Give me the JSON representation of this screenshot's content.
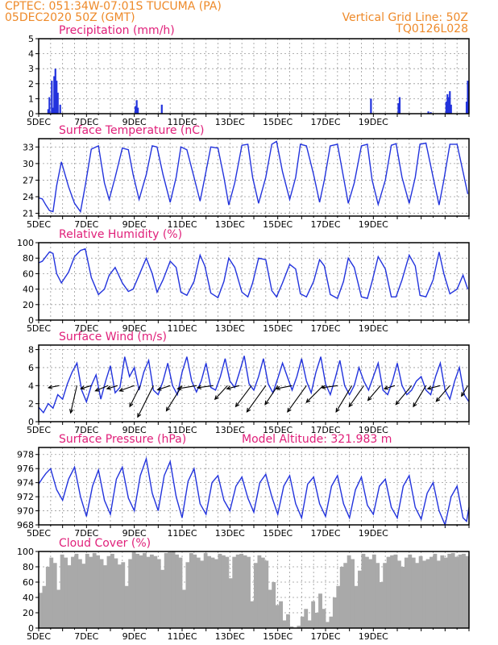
{
  "header": {
    "line1": "CPTEC:   051:34W-07:01S   TUCUMA (PA)",
    "line2": "05DEC2020 50Z (GMT)",
    "right1": "Vertical Grid Line: 50Z",
    "right2": "TQ0126L028"
  },
  "colors": {
    "line": "#2233dd",
    "cloud": "#a9a9a9",
    "title": "#e0207a",
    "header": "#ee8a2a"
  },
  "chart_data": [
    {
      "id": "precip",
      "type": "bar",
      "title": "Precipitation (mm/h)",
      "ylim": [
        0,
        5
      ],
      "yticks": [
        0,
        1,
        2,
        3,
        4,
        5
      ],
      "xlabels": [
        "5DEC",
        "7DEC",
        "9DEC",
        "11DEC",
        "13DEC",
        "15DEC",
        "17DEC",
        "19DEC"
      ],
      "x": [
        0.4,
        0.45,
        0.55,
        0.6,
        0.65,
        0.7,
        0.75,
        0.8,
        0.9,
        4.05,
        4.1,
        4.15,
        5.15,
        13.9,
        15.05,
        15.1,
        16.3,
        16.4,
        17.05,
        17.1,
        17.15,
        17.2,
        17.25,
        17.9,
        17.95
      ],
      "values": [
        0.3,
        1.1,
        2.2,
        0.4,
        2.5,
        3.0,
        2.2,
        1.4,
        0.6,
        0.5,
        0.9,
        0.4,
        0.6,
        1.0,
        0.7,
        1.1,
        0.15,
        0.1,
        0.8,
        1.3,
        1.1,
        1.5,
        0.6,
        0.8,
        2.2
      ]
    },
    {
      "id": "temp",
      "type": "line",
      "title": "Surface Temperature (nC)",
      "ylim": [
        20.5,
        34.5
      ],
      "yticks": [
        21,
        24,
        27,
        30,
        33
      ],
      "xlabels": [
        "5DEC",
        "7DEC",
        "9DEC",
        "11DEC",
        "13DEC",
        "15DEC",
        "17DEC",
        "19DEC"
      ],
      "x": [
        0,
        0.15,
        0.3,
        0.45,
        0.6,
        0.75,
        0.95,
        1.25,
        1.5,
        1.75,
        1.95,
        2.2,
        2.5,
        2.75,
        2.95,
        3.2,
        3.5,
        3.75,
        3.95,
        4.2,
        4.5,
        4.75,
        4.95,
        5.2,
        5.5,
        5.75,
        5.95,
        6.2,
        6.5,
        6.75,
        6.95,
        7.2,
        7.5,
        7.75,
        7.95,
        8.2,
        8.5,
        8.75,
        8.95,
        9.2,
        9.5,
        9.75,
        9.95,
        10.2,
        10.5,
        10.75,
        10.95,
        11.2,
        11.5,
        11.75,
        11.95,
        12.2,
        12.5,
        12.75,
        12.95,
        13.2,
        13.5,
        13.75,
        13.95,
        14.2,
        14.5,
        14.75,
        14.95,
        15.2,
        15.5,
        15.75,
        15.95,
        16.2,
        16.5,
        16.75,
        16.95,
        17.2,
        17.5,
        17.75,
        17.95
      ],
      "values": [
        23.8,
        23.6,
        22.5,
        21.5,
        21.3,
        26,
        30.3,
        25.8,
        22.8,
        21.3,
        26,
        32.6,
        33.2,
        26.5,
        23.5,
        27.5,
        32.8,
        32.5,
        28,
        23.5,
        28,
        33.2,
        33,
        28,
        23,
        27.5,
        33,
        32.5,
        27.5,
        23.2,
        27.5,
        33,
        32.8,
        27.5,
        22.5,
        26.5,
        33.3,
        33.5,
        27.5,
        22.8,
        27.5,
        33.5,
        34,
        28.5,
        23.5,
        27.5,
        33.5,
        33.2,
        28,
        23,
        27,
        33.2,
        33.5,
        27.5,
        22.8,
        26.5,
        33.2,
        33.5,
        27,
        22.6,
        27,
        33.3,
        33.6,
        27.5,
        22.8,
        27.5,
        33.5,
        33.7,
        27.5,
        22.5,
        27,
        33.5,
        33.5,
        28.5,
        24.5
      ]
    },
    {
      "id": "rh",
      "type": "line",
      "title": "Relative Humidity (%)",
      "ylim": [
        0,
        100
      ],
      "yticks": [
        0,
        20,
        40,
        60,
        80,
        100
      ],
      "xlabels": [
        "5DEC",
        "7DEC",
        "9DEC",
        "11DEC",
        "13DEC",
        "15DEC",
        "17DEC",
        "19DEC"
      ],
      "x": [
        0,
        0.15,
        0.3,
        0.45,
        0.6,
        0.75,
        0.95,
        1.25,
        1.5,
        1.75,
        1.95,
        2.2,
        2.5,
        2.75,
        2.95,
        3.2,
        3.5,
        3.75,
        3.95,
        4.2,
        4.5,
        4.75,
        4.95,
        5.2,
        5.5,
        5.75,
        5.95,
        6.2,
        6.5,
        6.75,
        6.95,
        7.2,
        7.5,
        7.75,
        7.95,
        8.2,
        8.5,
        8.75,
        8.95,
        9.2,
        9.5,
        9.75,
        9.95,
        10.2,
        10.5,
        10.75,
        10.95,
        11.2,
        11.5,
        11.75,
        11.95,
        12.2,
        12.5,
        12.75,
        12.95,
        13.2,
        13.5,
        13.75,
        13.95,
        14.2,
        14.5,
        14.75,
        14.95,
        15.2,
        15.5,
        15.75,
        15.95,
        16.2,
        16.5,
        16.75,
        16.95,
        17.2,
        17.5,
        17.75,
        17.95
      ],
      "values": [
        74,
        76,
        82,
        88,
        86,
        60,
        48,
        62,
        82,
        90,
        92,
        55,
        33,
        40,
        58,
        68,
        48,
        37,
        40,
        58,
        80,
        60,
        36,
        52,
        76,
        68,
        36,
        32,
        50,
        84,
        70,
        35,
        29,
        50,
        80,
        68,
        36,
        30,
        48,
        80,
        78,
        38,
        30,
        48,
        72,
        66,
        34,
        30,
        50,
        78,
        70,
        33,
        28,
        50,
        80,
        68,
        30,
        28,
        50,
        82,
        66,
        30,
        30,
        52,
        84,
        70,
        32,
        30,
        52,
        88,
        60,
        34,
        40,
        58,
        40
      ]
    },
    {
      "id": "wind",
      "type": "line",
      "title": "Surface Wind (m/s)",
      "ylim": [
        0,
        8.5
      ],
      "yticks": [
        0,
        2,
        4,
        6,
        8
      ],
      "xlabels": [
        "5DEC",
        "7DEC",
        "9DEC",
        "11DEC",
        "13DEC",
        "15DEC",
        "17DEC",
        "19DEC"
      ],
      "x": [
        0,
        0.2,
        0.4,
        0.6,
        0.8,
        1,
        1.2,
        1.4,
        1.6,
        1.8,
        2,
        2.2,
        2.4,
        2.6,
        2.8,
        3,
        3.2,
        3.4,
        3.6,
        3.8,
        4,
        4.2,
        4.4,
        4.6,
        4.8,
        5,
        5.2,
        5.4,
        5.6,
        5.8,
        6,
        6.2,
        6.4,
        6.6,
        6.8,
        7,
        7.2,
        7.4,
        7.6,
        7.8,
        8,
        8.2,
        8.4,
        8.6,
        8.8,
        9,
        9.2,
        9.4,
        9.6,
        9.8,
        10,
        10.2,
        10.4,
        10.6,
        10.8,
        11,
        11.2,
        11.4,
        11.6,
        11.8,
        12,
        12.2,
        12.4,
        12.6,
        12.8,
        13,
        13.2,
        13.4,
        13.6,
        13.8,
        14,
        14.2,
        14.4,
        14.6,
        14.8,
        15,
        15.2,
        15.4,
        15.6,
        15.8,
        16,
        16.2,
        16.4,
        16.6,
        16.8,
        17,
        17.2,
        17.4,
        17.6,
        17.8,
        18
      ],
      "values": [
        1.6,
        1.0,
        2.0,
        1.5,
        3.0,
        2.5,
        4.2,
        5.5,
        6.5,
        3.5,
        2.2,
        4.0,
        5.2,
        2.5,
        4.5,
        6.2,
        3.2,
        3.8,
        7.2,
        5.0,
        6.0,
        3.5,
        5.5,
        6.8,
        3.5,
        3.0,
        4.5,
        6.5,
        4.0,
        3.0,
        5.5,
        7.2,
        4.5,
        3.3,
        4.5,
        6.5,
        3.8,
        3.5,
        5.0,
        7.0,
        4.5,
        3.8,
        5.5,
        7.3,
        4.2,
        3.5,
        5.0,
        7.0,
        4.2,
        3.2,
        4.8,
        6.5,
        5.0,
        3.5,
        5.0,
        7.0,
        4.5,
        3.2,
        5.5,
        7.2,
        4.2,
        3.0,
        4.8,
        6.8,
        4.0,
        3.0,
        4.0,
        6.0,
        4.5,
        3.5,
        5.0,
        6.5,
        3.5,
        3.0,
        4.5,
        6.5,
        4.0,
        3.0,
        3.5,
        4.5,
        5.0,
        3.5,
        3.0,
        5.0,
        6.5,
        3.5,
        2.5,
        4.5,
        6.0,
        3.0,
        2.2
      ],
      "vectors": [
        {
          "x": 0.85,
          "u": -1.0,
          "v": -0.2
        },
        {
          "x": 1.6,
          "u": -0.6,
          "v": -2.6
        },
        {
          "x": 2.2,
          "u": -1.0,
          "v": -0.3
        },
        {
          "x": 2.9,
          "u": -1.2,
          "v": -0.5
        },
        {
          "x": 3.3,
          "u": -1.0,
          "v": -0.3
        },
        {
          "x": 4.0,
          "u": -1.4,
          "v": -0.5
        },
        {
          "x": 4.25,
          "u": -1.0,
          "v": -2.0
        },
        {
          "x": 4.8,
          "u": -1.5,
          "v": -3.0
        },
        {
          "x": 5.5,
          "u": -1.2,
          "v": -0.4
        },
        {
          "x": 6.0,
          "u": -1.5,
          "v": -2.4
        },
        {
          "x": 6.6,
          "u": -1.8,
          "v": -0.3
        },
        {
          "x": 7.3,
          "u": -1.5,
          "v": -0.2
        },
        {
          "x": 7.9,
          "u": -1.2,
          "v": -1.3
        },
        {
          "x": 8.4,
          "u": -1.2,
          "v": -0.3
        },
        {
          "x": 8.9,
          "u": -1.5,
          "v": -2.0
        },
        {
          "x": 9.5,
          "u": -1.8,
          "v": -2.5
        },
        {
          "x": 10.0,
          "u": -1.2,
          "v": -1.8
        },
        {
          "x": 10.6,
          "u": -1.5,
          "v": -0.3
        },
        {
          "x": 11.2,
          "u": -1.8,
          "v": -2.5
        },
        {
          "x": 11.9,
          "u": -1.6,
          "v": -1.6
        },
        {
          "x": 12.5,
          "u": -1.5,
          "v": -0.2
        },
        {
          "x": 13.1,
          "u": -1.5,
          "v": -2.5
        },
        {
          "x": 13.6,
          "u": -1.4,
          "v": -2.0
        },
        {
          "x": 14.3,
          "u": -1.2,
          "v": -1.4
        },
        {
          "x": 14.9,
          "u": -1.0,
          "v": -0.3
        },
        {
          "x": 15.6,
          "u": -1.5,
          "v": -1.8
        },
        {
          "x": 16.2,
          "u": -1.2,
          "v": -2.0
        },
        {
          "x": 16.8,
          "u": -1.2,
          "v": -0.3
        },
        {
          "x": 17.2,
          "u": -1.3,
          "v": -1.5
        },
        {
          "x": 17.95,
          "u": -0.6,
          "v": -1.0
        }
      ]
    },
    {
      "id": "pres",
      "type": "line",
      "title": "Surface Pressure (hPa)",
      "annotation": "Model Altitude: 321.983 m",
      "ylim": [
        968,
        979
      ],
      "yticks": [
        968,
        970,
        972,
        974,
        976,
        978
      ],
      "xlabels": [
        "5DEC",
        "7DEC",
        "9DEC",
        "11DEC",
        "13DEC",
        "15DEC",
        "17DEC",
        "19DEC"
      ],
      "x": [
        0,
        0.15,
        0.3,
        0.5,
        0.75,
        1.0,
        1.25,
        1.5,
        1.75,
        2.0,
        2.25,
        2.5,
        2.75,
        3.0,
        3.25,
        3.5,
        3.75,
        4.0,
        4.25,
        4.5,
        4.75,
        5.0,
        5.25,
        5.5,
        5.75,
        6.0,
        6.25,
        6.5,
        6.75,
        7.0,
        7.25,
        7.5,
        7.75,
        8.0,
        8.25,
        8.5,
        8.75,
        9.0,
        9.25,
        9.5,
        9.75,
        10.0,
        10.25,
        10.5,
        10.75,
        11.0,
        11.25,
        11.5,
        11.75,
        12.0,
        12.25,
        12.5,
        12.75,
        13.0,
        13.25,
        13.5,
        13.75,
        14.0,
        14.25,
        14.5,
        14.75,
        15.0,
        15.25,
        15.5,
        15.75,
        16.0,
        16.25,
        16.5,
        16.75,
        17.0,
        17.25,
        17.5,
        17.75,
        17.9,
        18.0
      ],
      "values": [
        973.8,
        974.6,
        975.3,
        976.0,
        973.0,
        971.5,
        974.5,
        976.2,
        972.0,
        969.2,
        973.5,
        975.8,
        971.5,
        969.5,
        974.5,
        976.2,
        971.8,
        970.0,
        975.0,
        977.4,
        972.5,
        970.0,
        975.0,
        977.0,
        972.0,
        969.0,
        974.2,
        976.0,
        971.0,
        969.5,
        974.0,
        975.0,
        971.5,
        970.0,
        973.5,
        974.8,
        971.8,
        969.8,
        974.0,
        975.2,
        972.0,
        969.5,
        973.5,
        975.0,
        971.0,
        969.0,
        973.8,
        974.8,
        971.0,
        969.2,
        973.5,
        975.0,
        971.0,
        969.0,
        973.0,
        974.8,
        970.8,
        969.5,
        973.5,
        974.5,
        970.5,
        969.0,
        973.5,
        975.0,
        970.5,
        968.8,
        972.5,
        974.0,
        970.0,
        968.0,
        972.0,
        973.5,
        969.0,
        968.5,
        970.5
      ]
    },
    {
      "id": "cloud",
      "type": "bar",
      "title": "Cloud Cover (%)",
      "ylim": [
        0,
        100
      ],
      "yticks": [
        0,
        20,
        40,
        60,
        80,
        100
      ],
      "xlabels": [
        "5DEC",
        "7DEC",
        "9DEC",
        "11DEC",
        "13DEC",
        "15DEC",
        "17DEC",
        "19DEC"
      ],
      "x": [
        0,
        0.15,
        0.3,
        0.45,
        0.6,
        0.75,
        0.9,
        1.05,
        1.2,
        1.35,
        1.5,
        1.65,
        1.8,
        1.95,
        2.1,
        2.25,
        2.4,
        2.55,
        2.7,
        2.85,
        3.0,
        3.15,
        3.3,
        3.45,
        3.6,
        3.75,
        3.9,
        4.05,
        4.2,
        4.35,
        4.5,
        4.65,
        4.8,
        4.95,
        5.1,
        5.25,
        5.4,
        5.55,
        5.7,
        5.85,
        6.0,
        6.15,
        6.3,
        6.45,
        6.6,
        6.75,
        6.9,
        7.05,
        7.2,
        7.35,
        7.5,
        7.65,
        7.8,
        7.95,
        8.1,
        8.25,
        8.4,
        8.55,
        8.7,
        8.85,
        9.0,
        9.15,
        9.3,
        9.45,
        9.6,
        9.75,
        9.9,
        10.05,
        10.2,
        10.35,
        10.5,
        10.65,
        10.8,
        10.95,
        11.1,
        11.25,
        11.4,
        11.55,
        11.7,
        11.85,
        12.0,
        12.15,
        12.3,
        12.45,
        12.6,
        12.75,
        12.9,
        13.05,
        13.2,
        13.35,
        13.5,
        13.65,
        13.8,
        13.95,
        14.1,
        14.25,
        14.4,
        14.55,
        14.7,
        14.85,
        15.0,
        15.15,
        15.3,
        15.45,
        15.6,
        15.75,
        15.9,
        16.05,
        16.2,
        16.35,
        16.5,
        16.65,
        16.8,
        16.95,
        17.1,
        17.25,
        17.4,
        17.55,
        17.7,
        17.85
      ],
      "values": [
        46,
        55,
        80,
        92,
        85,
        50,
        96,
        92,
        82,
        93,
        97,
        90,
        84,
        97,
        93,
        98,
        95,
        90,
        82,
        94,
        97,
        91,
        83,
        86,
        55,
        90,
        99,
        97,
        95,
        98,
        93,
        96,
        94,
        90,
        76,
        98,
        99,
        100,
        96,
        92,
        50,
        86,
        98,
        96,
        92,
        88,
        98,
        94,
        92,
        90,
        97,
        95,
        93,
        65,
        93,
        96,
        97,
        95,
        93,
        35,
        85,
        95,
        92,
        88,
        50,
        60,
        30,
        35,
        10,
        18,
        2,
        0,
        3,
        15,
        25,
        10,
        35,
        20,
        45,
        25,
        8,
        15,
        40,
        55,
        80,
        85,
        95,
        90,
        55,
        75,
        97,
        93,
        90,
        96,
        85,
        60,
        85,
        93,
        95,
        96,
        88,
        80,
        92,
        96,
        92,
        85,
        94,
        88,
        90,
        93,
        97,
        88,
        95,
        92,
        97,
        98,
        93,
        96,
        97,
        94
      ]
    }
  ]
}
